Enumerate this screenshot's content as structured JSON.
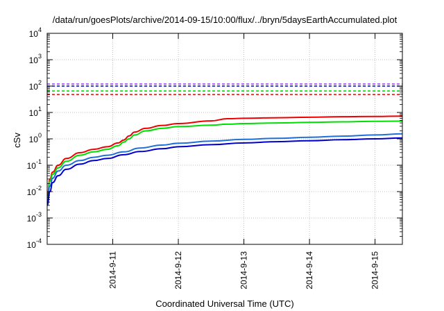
{
  "chart_data": {
    "type": "line",
    "title": "/data/run/goesPlots/archive/2014-09-15/10:00/flux/../bryn/5daysEarthAccumulated.plot",
    "xlabel": "Coordinated Universal Time (UTC)",
    "ylabel": "cSv",
    "x_scale": "time",
    "xlim": [
      "2014-09-10T00:00",
      "2014-09-15T10:00"
    ],
    "x_ticks": [
      {
        "value": "2014-09-11T00:00",
        "label": "2014-9-11"
      },
      {
        "value": "2014-09-12T00:00",
        "label": "2014-9-12"
      },
      {
        "value": "2014-09-13T00:00",
        "label": "2014-9-13"
      },
      {
        "value": "2014-09-14T00:00",
        "label": "2014-9-14"
      },
      {
        "value": "2014-09-15T00:00",
        "label": "2014-9-15"
      }
    ],
    "y_scale": "log",
    "ylim": [
      0.0001,
      10000
    ],
    "y_ticks": [
      {
        "value": 0.0001,
        "base": "10",
        "exp": "-4"
      },
      {
        "value": 0.001,
        "base": "10",
        "exp": "-3"
      },
      {
        "value": 0.01,
        "base": "10",
        "exp": "-2"
      },
      {
        "value": 0.1,
        "base": "10",
        "exp": "-1"
      },
      {
        "value": 1,
        "base": "10",
        "exp": "0"
      },
      {
        "value": 10,
        "base": "10",
        "exp": "1"
      },
      {
        "value": 100,
        "base": "10",
        "exp": "2"
      },
      {
        "value": 1000,
        "base": "10",
        "exp": "3"
      },
      {
        "value": 10000,
        "base": "10",
        "exp": "4"
      }
    ],
    "grid": true,
    "legend": "none",
    "thresholds": [
      {
        "value": 120,
        "color": "#9b30ff"
      },
      {
        "value": 100,
        "color": "#0000cc"
      },
      {
        "value": 65,
        "color": "#00dd00"
      },
      {
        "value": 48,
        "color": "#ee0000"
      }
    ],
    "series": [
      {
        "color": "#ee0000",
        "x": [
          "2014-09-10T00:00",
          "2014-09-10T01:00",
          "2014-09-10T02:00",
          "2014-09-10T04:00",
          "2014-09-10T07:00",
          "2014-09-10T12:00",
          "2014-09-10T17:00",
          "2014-09-10T22:00",
          "2014-09-11T02:00",
          "2014-09-11T04:00",
          "2014-09-11T06:00",
          "2014-09-11T08:00",
          "2014-09-11T12:00",
          "2014-09-11T18:00",
          "2014-09-12T00:00",
          "2014-09-12T12:00",
          "2014-09-12T18:00",
          "2014-09-13T00:00",
          "2014-09-13T12:00",
          "2014-09-14T00:00",
          "2014-09-14T12:00",
          "2014-09-15T00:00",
          "2014-09-15T10:00"
        ],
        "values": [
          0.005,
          0.03,
          0.055,
          0.1,
          0.18,
          0.3,
          0.4,
          0.5,
          0.7,
          0.9,
          1.3,
          1.8,
          2.5,
          3.2,
          3.8,
          4.8,
          5.8,
          6.0,
          6.3,
          6.6,
          6.9,
          7.1,
          7.3
        ]
      },
      {
        "color": "#00dd00",
        "x": [
          "2014-09-10T00:00",
          "2014-09-10T01:00",
          "2014-09-10T02:00",
          "2014-09-10T04:00",
          "2014-09-10T07:00",
          "2014-09-10T12:00",
          "2014-09-10T17:00",
          "2014-09-10T22:00",
          "2014-09-11T02:00",
          "2014-09-11T04:00",
          "2014-09-11T06:00",
          "2014-09-11T08:00",
          "2014-09-11T12:00",
          "2014-09-11T18:00",
          "2014-09-12T00:00",
          "2014-09-12T12:00",
          "2014-09-12T18:00",
          "2014-09-13T00:00",
          "2014-09-13T12:00",
          "2014-09-14T00:00",
          "2014-09-14T12:00",
          "2014-09-15T00:00",
          "2014-09-15T10:00"
        ],
        "values": [
          0.004,
          0.025,
          0.045,
          0.08,
          0.14,
          0.24,
          0.32,
          0.4,
          0.55,
          0.75,
          1.0,
          1.4,
          2.0,
          2.5,
          2.9,
          3.3,
          3.6,
          3.8,
          4.0,
          4.2,
          4.4,
          4.6,
          4.7
        ]
      },
      {
        "color": "#1f6fd6",
        "x": [
          "2014-09-10T00:00",
          "2014-09-10T01:00",
          "2014-09-10T02:00",
          "2014-09-10T04:00",
          "2014-09-10T07:00",
          "2014-09-10T12:00",
          "2014-09-10T17:00",
          "2014-09-10T22:00",
          "2014-09-11T04:00",
          "2014-09-11T10:00",
          "2014-09-11T18:00",
          "2014-09-12T00:00",
          "2014-09-12T12:00",
          "2014-09-13T00:00",
          "2014-09-13T12:00",
          "2014-09-14T00:00",
          "2014-09-14T12:00",
          "2014-09-15T00:00",
          "2014-09-15T10:00"
        ],
        "values": [
          0.004,
          0.016,
          0.032,
          0.06,
          0.1,
          0.15,
          0.2,
          0.24,
          0.32,
          0.45,
          0.58,
          0.68,
          0.82,
          0.95,
          1.05,
          1.15,
          1.27,
          1.4,
          1.55
        ]
      },
      {
        "color": "#0000cc",
        "x": [
          "2014-09-10T00:00",
          "2014-09-10T01:00",
          "2014-09-10T02:00",
          "2014-09-10T04:00",
          "2014-09-10T07:00",
          "2014-09-10T12:00",
          "2014-09-10T17:00",
          "2014-09-10T22:00",
          "2014-09-11T04:00",
          "2014-09-11T10:00",
          "2014-09-11T18:00",
          "2014-09-12T00:00",
          "2014-09-12T12:00",
          "2014-09-13T00:00",
          "2014-09-13T12:00",
          "2014-09-14T00:00",
          "2014-09-14T12:00",
          "2014-09-15T00:00",
          "2014-09-15T10:00"
        ],
        "values": [
          0.003,
          0.01,
          0.022,
          0.04,
          0.07,
          0.11,
          0.15,
          0.18,
          0.25,
          0.33,
          0.42,
          0.5,
          0.6,
          0.7,
          0.78,
          0.85,
          0.93,
          1.0,
          1.08
        ]
      }
    ]
  }
}
